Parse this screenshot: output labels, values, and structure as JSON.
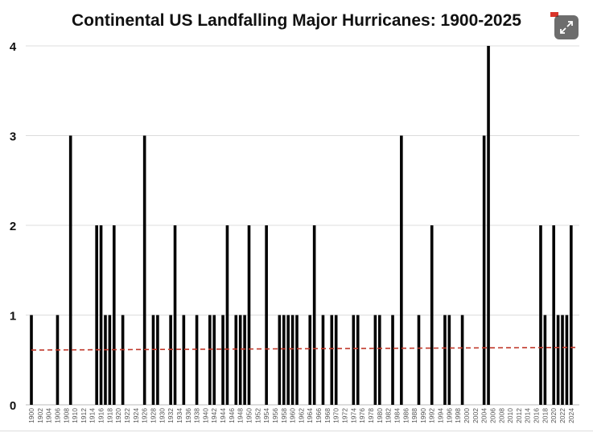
{
  "chart_data": {
    "type": "bar",
    "title": "Continental US Landfalling Major Hurricanes: 1900-2025",
    "xlabel": "",
    "ylabel": "",
    "xlim": [
      1900,
      2025
    ],
    "ylim": [
      0,
      4
    ],
    "yticks": [
      0,
      1,
      2,
      3,
      4
    ],
    "xtick_step": 2,
    "grid": "horizontal",
    "bar_color": "#000000",
    "trend_color": "#c0392b",
    "trend_style": "dashed",
    "trend": {
      "x": [
        1900,
        2025
      ],
      "y": [
        0.61,
        0.64
      ]
    },
    "values": {
      "1900": 1,
      "1906": 1,
      "1909": 3,
      "1915": 2,
      "1916": 2,
      "1917": 1,
      "1918": 1,
      "1919": 2,
      "1921": 1,
      "1926": 3,
      "1928": 1,
      "1929": 1,
      "1932": 1,
      "1933": 2,
      "1935": 1,
      "1938": 1,
      "1941": 1,
      "1942": 1,
      "1944": 1,
      "1945": 2,
      "1947": 1,
      "1948": 1,
      "1949": 1,
      "1950": 2,
      "1954": 2,
      "1957": 1,
      "1958": 1,
      "1959": 1,
      "1960": 1,
      "1961": 1,
      "1964": 1,
      "1965": 2,
      "1967": 1,
      "1969": 1,
      "1970": 1,
      "1974": 1,
      "1975": 1,
      "1979": 1,
      "1980": 1,
      "1983": 1,
      "1985": 3,
      "1989": 1,
      "1992": 2,
      "1995": 1,
      "1996": 1,
      "1999": 1,
      "2004": 3,
      "2005": 4,
      "2017": 2,
      "2018": 1,
      "2020": 2,
      "2021": 1,
      "2022": 1,
      "2023": 1,
      "2024": 2
    }
  },
  "controls": {
    "expand_icon": "expand-arrows-icon"
  }
}
